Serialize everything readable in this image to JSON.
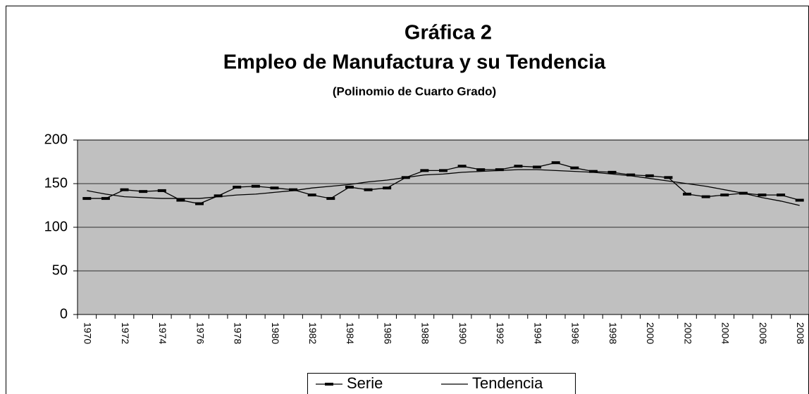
{
  "chart_data": {
    "type": "line",
    "title": [
      "Gráfica 2",
      "Empleo de Manufactura y su Tendencia"
    ],
    "subtitle": "(Polinomio de Cuarto Grado)",
    "categories": [
      "1970",
      null,
      "1972",
      null,
      "1974",
      null,
      "1976",
      null,
      "1978",
      null,
      "1980",
      null,
      "1982",
      null,
      "1984",
      null,
      "1986",
      null,
      "1988",
      null,
      "1990",
      null,
      "1992",
      null,
      "1994",
      null,
      "1996",
      null,
      "1998",
      null,
      "2000",
      null,
      "2002",
      null,
      "2004",
      null,
      "2006",
      null,
      "2008"
    ],
    "series": [
      {
        "name": "Serie",
        "color": "#000000",
        "marker": true,
        "values": [
          133,
          133,
          143,
          141,
          142,
          131,
          127,
          136,
          146,
          147,
          145,
          143,
          137,
          133,
          146,
          143,
          145,
          157,
          165,
          165,
          170,
          166,
          166,
          170,
          169,
          174,
          168,
          164,
          163,
          160,
          159,
          157,
          138,
          135,
          137,
          139,
          137,
          137,
          131
        ]
      },
      {
        "name": "Tendencia",
        "color": "#000000",
        "marker": false,
        "values": [
          142,
          138,
          135,
          134,
          133,
          133,
          133,
          135,
          137,
          138,
          140,
          142,
          145,
          147,
          149,
          152,
          154,
          157,
          160,
          161,
          163,
          164,
          165,
          166,
          166,
          165,
          164,
          163,
          161,
          159,
          156,
          153,
          150,
          147,
          143,
          139,
          134,
          130,
          125
        ]
      }
    ],
    "ylim": [
      0,
      200
    ],
    "yticks": [
      0,
      50,
      100,
      150,
      200
    ],
    "grid": true,
    "plot_color": "#c0c0c0",
    "legend": "bottom"
  }
}
